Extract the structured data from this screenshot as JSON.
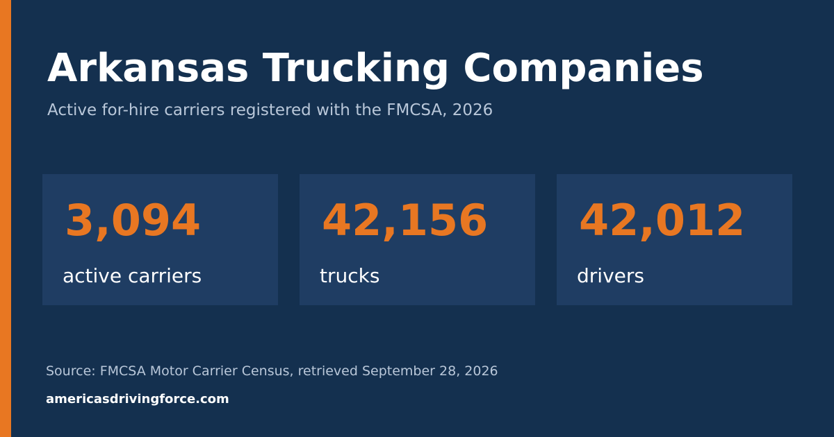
{
  "header": {
    "title": "Arkansas Trucking Companies",
    "subtitle": "Active for-hire carriers registered with the FMCSA, 2026"
  },
  "stats": [
    {
      "value": "3,094",
      "label": "active carriers"
    },
    {
      "value": "42,156",
      "label": "trucks"
    },
    {
      "value": "42,012",
      "label": "drivers"
    }
  ],
  "footer": {
    "source": "Source: FMCSA Motor Carrier Census, retrieved September 28, 2026",
    "site": "americasdrivingforce.com"
  }
}
